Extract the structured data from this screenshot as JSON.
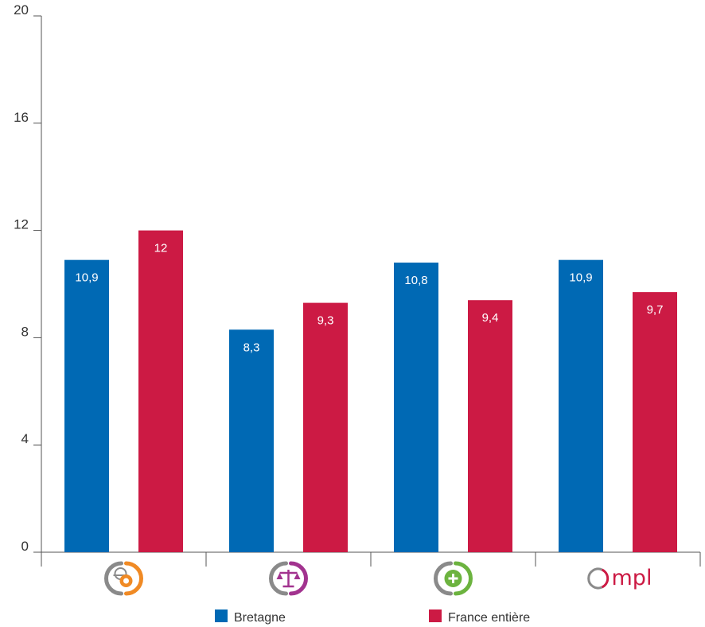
{
  "chart_data": {
    "type": "bar",
    "categories": [
      "professions-techniques-icon",
      "professions-juridiques-icon",
      "professions-sante-icon",
      "ompl-logo"
    ],
    "series": [
      {
        "name": "Bretagne",
        "values": [
          10.9,
          8.3,
          10.8,
          10.9
        ],
        "value_labels": [
          "10,9",
          "8,3",
          "10,8",
          "10,9"
        ],
        "color": "#0069b4"
      },
      {
        "name": "France entière",
        "values": [
          12,
          9.3,
          9.4,
          9.7
        ],
        "value_labels": [
          "12",
          "9,3",
          "9,4",
          "9,7"
        ],
        "color": "#cc1a44"
      }
    ],
    "yticks": [
      0,
      4,
      8,
      12,
      16,
      20
    ],
    "ylim": [
      0,
      20
    ],
    "grid": false,
    "legend": "bottom"
  },
  "category_icons": [
    {
      "name": "professions-techniques-icon",
      "color": "#f08a24"
    },
    {
      "name": "professions-juridiques-icon",
      "color": "#a2338f"
    },
    {
      "name": "professions-sante-icon",
      "color": "#6cb33f"
    },
    {
      "name": "ompl-logo",
      "text": "mpl",
      "color": "#cc1a44"
    }
  ],
  "logo_ring_color": "#8a8a8a"
}
